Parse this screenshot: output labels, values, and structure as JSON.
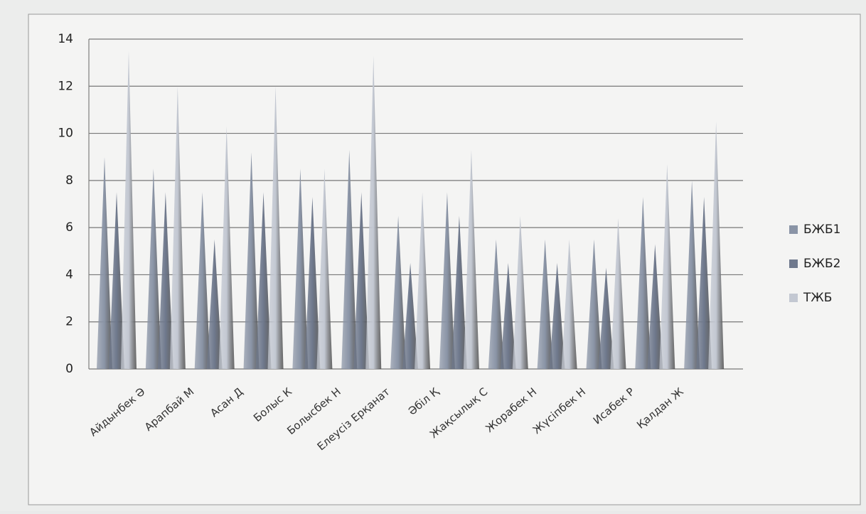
{
  "chart_data": {
    "type": "cone-bar",
    "categories": [
      "Айдынбек Ә",
      "Арапбай М",
      "Асан Д",
      "Болыс К",
      "Болысбек Н",
      "Елеусіз Ерқанат",
      "Әбіл Қ",
      "Жақсылық С",
      "Жорабек Н",
      "Жүсіпбек Н",
      "Исабек Р",
      "Қалдан Ж",
      null
    ],
    "series": [
      {
        "name": "БЖБ1",
        "color": "#8a94a6",
        "values": [
          9,
          8.5,
          7.5,
          9.2,
          8.5,
          9.3,
          6.5,
          7.5,
          5.5,
          5.5,
          5.5,
          7.3,
          8
        ]
      },
      {
        "name": "БЖБ2",
        "color": "#6f798d",
        "values": [
          7.5,
          7.5,
          5.5,
          7.5,
          7.3,
          7.5,
          4.5,
          6.5,
          4.5,
          4.5,
          4.3,
          5.3,
          7.3
        ]
      },
      {
        "name": "ТЖБ",
        "color": "#c3c8d2",
        "values": [
          13.5,
          12,
          10.3,
          12,
          8.5,
          13.3,
          7.5,
          9.3,
          6.5,
          5.5,
          6.4,
          8.7,
          10.5
        ]
      }
    ],
    "ylim": [
      0,
      14
    ],
    "yticks": [
      0,
      2,
      4,
      6,
      8,
      10,
      12,
      14
    ],
    "grid": true,
    "legend": "right"
  }
}
